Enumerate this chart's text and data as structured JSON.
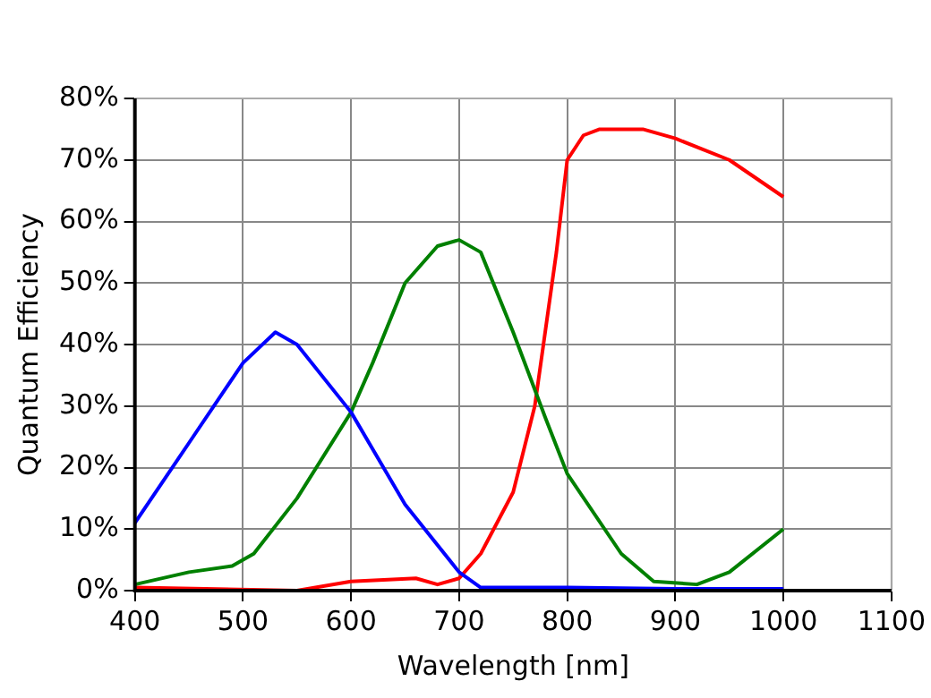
{
  "chart_data": {
    "type": "line",
    "xlabel": "Wavelength [nm]",
    "ylabel": "Quantum Efficiency",
    "xlim": [
      400,
      1100
    ],
    "xticks": [
      400,
      500,
      600,
      700,
      800,
      900,
      1000,
      1100
    ],
    "ylim": [
      0,
      80
    ],
    "yticks": [
      {
        "value": 0,
        "label": "0%"
      },
      {
        "value": 10,
        "label": "10%"
      },
      {
        "value": 20,
        "label": "20%"
      },
      {
        "value": 30,
        "label": "30%"
      },
      {
        "value": 40,
        "label": "40%"
      },
      {
        "value": 50,
        "label": "50%"
      },
      {
        "value": 60,
        "label": "60%"
      },
      {
        "value": 70,
        "label": "70%"
      },
      {
        "value": 80,
        "label": "80%"
      }
    ],
    "grid": true,
    "legend": false,
    "marker": "none",
    "line_style": "solid",
    "series": [
      {
        "color": "#0000ff",
        "x": [
          400,
          450,
          500,
          530,
          550,
          600,
          650,
          700,
          720,
          800,
          900,
          1000
        ],
        "values": [
          11,
          24,
          37,
          42,
          40,
          29,
          14,
          3,
          0.5,
          0.5,
          0.3,
          0.3
        ]
      },
      {
        "color": "#008000",
        "x": [
          400,
          450,
          490,
          510,
          550,
          600,
          620,
          650,
          680,
          700,
          720,
          750,
          780,
          800,
          850,
          880,
          920,
          950,
          1000
        ],
        "values": [
          1,
          3,
          4,
          6,
          15,
          29,
          37,
          50,
          56,
          57,
          55,
          42,
          28,
          19,
          6,
          1.5,
          1,
          3,
          10
        ]
      },
      {
        "color": "#ff0000",
        "x": [
          400,
          550,
          600,
          660,
          680,
          700,
          720,
          750,
          770,
          790,
          800,
          815,
          830,
          870,
          900,
          950,
          1000
        ],
        "values": [
          0.5,
          0,
          1.5,
          2,
          1,
          2,
          6,
          16,
          30,
          55,
          70,
          74,
          75,
          75,
          73.5,
          70,
          64
        ]
      }
    ]
  }
}
